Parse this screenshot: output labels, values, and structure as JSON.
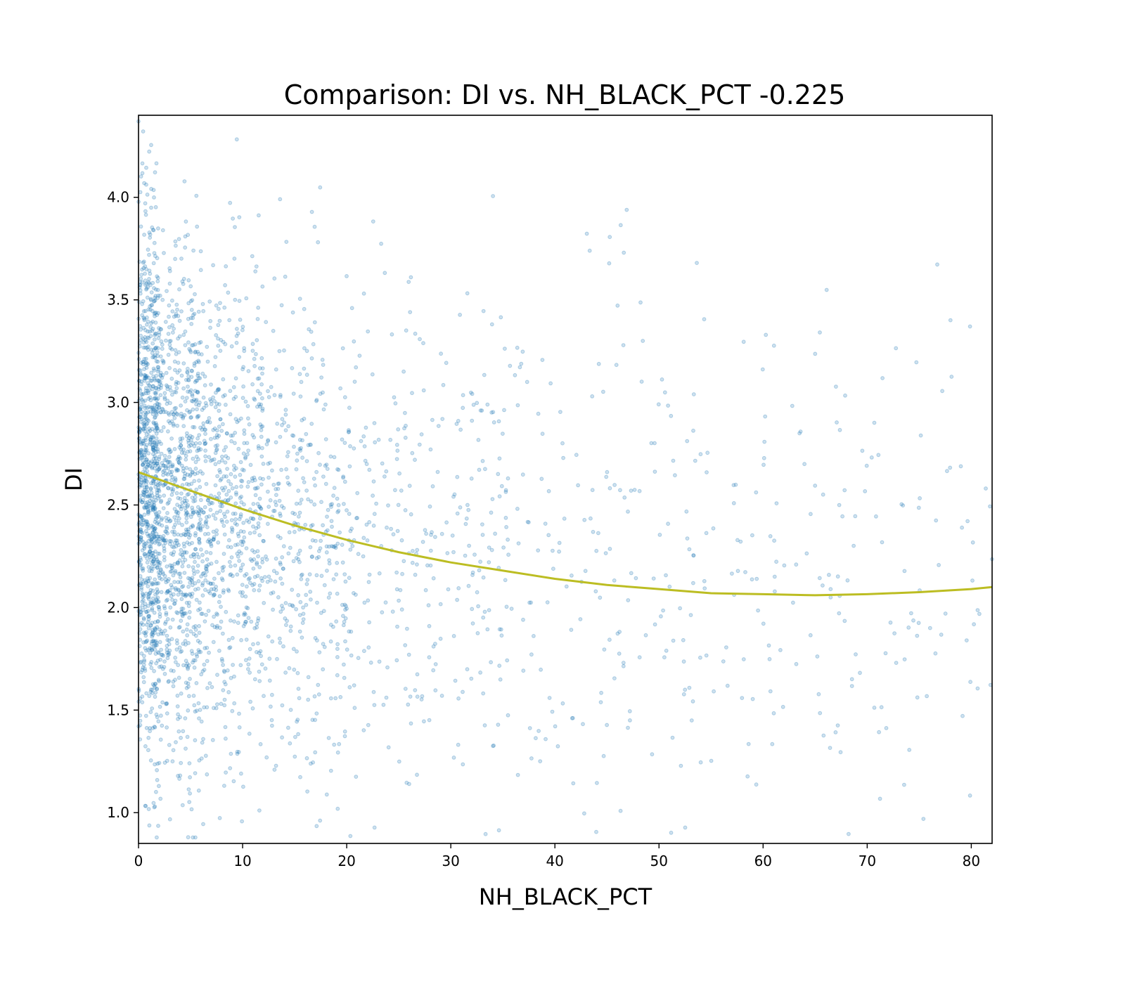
{
  "chart_data": {
    "type": "scatter",
    "title": "Comparison:  DI  vs.  NH_BLACK_PCT  -0.225",
    "xlabel": "NH_BLACK_PCT",
    "ylabel": "DI",
    "xlim": [
      0,
      82
    ],
    "ylim": [
      0.85,
      4.4
    ],
    "xticks": [
      0,
      10,
      20,
      30,
      40,
      50,
      60,
      70,
      80
    ],
    "xtick_labels": [
      "0",
      "10",
      "20",
      "30",
      "40",
      "50",
      "60",
      "70",
      "80"
    ],
    "yticks": [
      1.0,
      1.5,
      2.0,
      2.5,
      3.0,
      3.5,
      4.0
    ],
    "ytick_labels": [
      "1.0",
      "1.5",
      "2.0",
      "2.5",
      "3.0",
      "3.5",
      "4.0"
    ],
    "grid": false,
    "point_color": "#1f77b4",
    "point_alpha": 0.3,
    "fit_color": "#bcbd22",
    "fit_curve": {
      "x": [
        0,
        5,
        10,
        15,
        20,
        25,
        30,
        35,
        40,
        45,
        50,
        55,
        60,
        65,
        70,
        75,
        80,
        82
      ],
      "y": [
        2.66,
        2.57,
        2.48,
        2.4,
        2.33,
        2.27,
        2.22,
        2.18,
        2.14,
        2.11,
        2.09,
        2.07,
        2.065,
        2.06,
        2.065,
        2.075,
        2.09,
        2.1
      ]
    },
    "point_density": {
      "note": "dense cloud near x=0-15, sparse beyond; DI spread roughly 0.85-4.4",
      "bands": [
        {
          "x_range": [
            0,
            2
          ],
          "count": 900,
          "y_mean": 2.6,
          "y_sd": 0.65
        },
        {
          "x_range": [
            2,
            6
          ],
          "count": 800,
          "y_mean": 2.45,
          "y_sd": 0.6
        },
        {
          "x_range": [
            6,
            12
          ],
          "count": 600,
          "y_mean": 2.4,
          "y_sd": 0.6
        },
        {
          "x_range": [
            12,
            20
          ],
          "count": 380,
          "y_mean": 2.35,
          "y_sd": 0.6
        },
        {
          "x_range": [
            20,
            35
          ],
          "count": 300,
          "y_mean": 2.3,
          "y_sd": 0.65
        },
        {
          "x_range": [
            35,
            55
          ],
          "count": 200,
          "y_mean": 2.2,
          "y_sd": 0.7
        },
        {
          "x_range": [
            55,
            82
          ],
          "count": 170,
          "y_mean": 2.1,
          "y_sd": 0.7
        }
      ]
    }
  }
}
